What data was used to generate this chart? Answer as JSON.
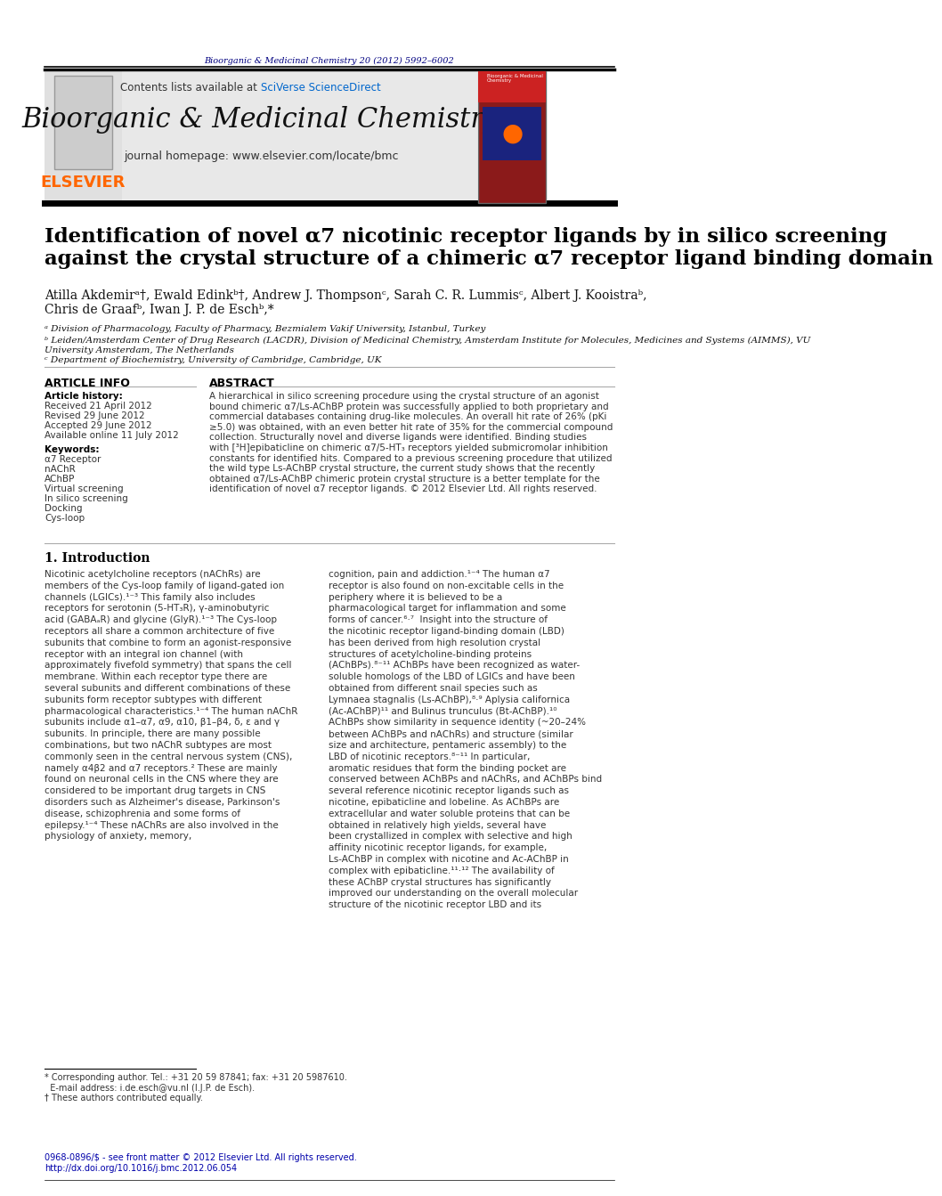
{
  "page_bg": "#ffffff",
  "top_bar_color": "#000080",
  "header_bg": "#e8e8e8",
  "journal_name": "Bioorganic & Medicinal Chemistry",
  "journal_url": "journal homepage: www.elsevier.com/locate/bmc",
  "contents_text": "Contents lists available at ",
  "sciverse_text": "SciVerse ScienceDirect",
  "elsevier_color": "#FF6600",
  "sciverse_color": "#0066CC",
  "citation_text": "Bioorganic & Medicinal Chemistry 20 (2012) 5992–6002",
  "citation_color": "#000080",
  "title": "Identification of novel α7 nicotinic receptor ligands by in silico screening\nagainst the crystal structure of a chimeric α7 receptor ligand binding domain",
  "authors": "Atilla Akdemirᵃ†, Ewald Edinkᵇ†, Andrew J. Thompsonᶜ, Sarah C. R. Lummisᶜ, Albert J. Kooistraᵇ,\nChris de Graafᵇ, Iwan J. P. de Eschᵇ,*",
  "affil_a": "ᵃ Division of Pharmacology, Faculty of Pharmacy, Bezmialem Vakif University, Istanbul, Turkey",
  "affil_b": "ᵇ Leiden/Amsterdam Center of Drug Research (LACDR), Division of Medicinal Chemistry, Amsterdam Institute for Molecules, Medicines and Systems (AIMMS), VU\nUniversity Amsterdam, The Netherlands",
  "affil_c": "ᶜ Department of Biochemistry, University of Cambridge, Cambridge, UK",
  "article_info_header": "ARTICLE INFO",
  "abstract_header": "ABSTRACT",
  "article_history_label": "Article history:",
  "received": "Received 21 April 2012",
  "revised": "Revised 29 June 2012",
  "accepted": "Accepted 29 June 2012",
  "available": "Available online 11 July 2012",
  "keywords_label": "Keywords:",
  "keywords": [
    "α7 Receptor",
    "nAChR",
    "AChBP",
    "Virtual screening",
    "In silico screening",
    "Docking",
    "Cys-loop"
  ],
  "abstract_text": "A hierarchical in silico screening procedure using the crystal structure of an agonist bound chimeric α7/Ls-AChBP protein was successfully applied to both proprietary and commercial databases containing drug-like molecules. An overall hit rate of 26% (pKi ≥5.0) was obtained, with an even better hit rate of 35% for the commercial compound collection. Structurally novel and diverse ligands were identified. Binding studies with [³H]epibaticline on chimeric α7/5-HT₃ receptors yielded submicromolar inhibition constants for identified hits. Compared to a previous screening procedure that utilized the wild type Ls-AChBP crystal structure, the current study shows that the recently obtained α7/Ls-AChBP chimeric protein crystal structure is a better template for the identification of novel α7 receptor ligands.\n© 2012 Elsevier Ltd. All rights reserved.",
  "intro_header": "1. Introduction",
  "intro_col1": "Nicotinic acetylcholine receptors (nAChRs) are members of the Cys-loop family of ligand-gated ion channels (LGICs).¹⁻³ This family also includes receptors for serotonin (5-HT₃R), γ-aminobutyric acid (GABAₐR) and glycine (GlyR).¹⁻³ The Cys-loop receptors all share a common architecture of five subunits that combine to form an agonist-responsive receptor with an integral ion channel (with approximately fivefold symmetry) that spans the cell membrane. Within each receptor type there are several subunits and different combinations of these subunits form receptor subtypes with different pharmacological characteristics.¹⁻⁴ The human nAChR subunits include α1–α7, α9, α10, β1–β4, δ, ε and γ subunits. In principle, there are many possible combinations, but two nAChR subtypes are most commonly seen in the central nervous system (CNS), namely α4β2 and α7 receptors.² These are mainly found on neuronal cells in the CNS where they are considered to be important drug targets in CNS disorders such as Alzheimer's disease, Parkinson's disease, schizophrenia and some forms of epilepsy.¹⁻⁴ These nAChRs are also involved in the physiology of anxiety, memory,",
  "intro_col2": "cognition, pain and addiction.¹⁻⁴ The human α7 receptor is also found on non-excitable cells in the periphery where it is believed to be a pharmacological target for inflammation and some forms of cancer.⁶‧⁷\n\nInsight into the structure of the nicotinic receptor ligand-binding domain (LBD) has been derived from high resolution crystal structures of acetylcholine-binding proteins (AChBPs).⁸⁻¹¹ AChBPs have been recognized as water-soluble homologs of the LBD of LGICs and have been obtained from different snail species such as Lymnaea stagnalis (Ls-AChBP),⁸‧⁹ Aplysia californica (Ac-AChBP)¹¹ and Bulinus trunculus (Bt-AChBP).¹⁰ AChBPs show similarity in sequence identity (~20–24% between AChBPs and nAChRs) and structure (similar size and architecture, pentameric assembly) to the LBD of nicotinic receptors.⁸⁻¹¹ In particular, aromatic residues that form the binding pocket are conserved between AChBPs and nAChRs, and AChBPs bind several reference nicotinic receptor ligands such as nicotine, epibaticline and lobeline. As AChBPs are extracellular and water soluble proteins that can be obtained in relatively high yields, several have been crystallized in complex with selective and high affinity nicotinic receptor ligands, for example, Ls-AChBP in complex with nicotine and Ac-AChBP in complex with epibaticline.¹¹‧¹² The availability of these AChBP crystal structures has significantly improved our understanding on the overall molecular structure of the nicotinic receptor LBD and its",
  "footnote_text": "* Corresponding author. Tel.: +31 20 59 87841; fax: +31 20 5987610.\n  E-mail address: i.de.esch@vu.nl (I.J.P. de Esch).\n† These authors contributed equally.",
  "footer_text": "0968-0896/$ - see front matter © 2012 Elsevier Ltd. All rights reserved.\nhttp://dx.doi.org/10.1016/j.bmc.2012.06.054",
  "separator_color": "#000000",
  "header_separator_color": "#000000"
}
